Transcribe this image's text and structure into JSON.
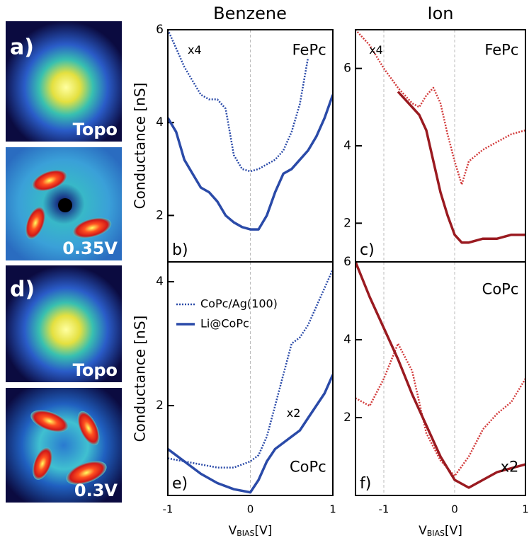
{
  "column_titles": [
    "Benzene",
    "Ion"
  ],
  "images": [
    {
      "label": "a)",
      "caption": "Topo"
    },
    {
      "caption": "0.35V"
    },
    {
      "label": "d)",
      "caption": "Topo"
    },
    {
      "caption": "0.3V"
    }
  ],
  "chart_data": [
    {
      "type": "line",
      "panel_label": "b)",
      "ylabel": "Conductance [nS]",
      "annotations": [
        "x4",
        "FePc"
      ],
      "xlim": [
        -1,
        1
      ],
      "xticks": [
        -1,
        0,
        1
      ],
      "show_xticklabels": false,
      "ylim": [
        1,
        6
      ],
      "yticks": [
        2,
        4,
        6
      ],
      "grid": true,
      "series": [
        {
          "color": "#2a4aa8",
          "style": "dotted",
          "x": [
            -1,
            -0.9,
            -0.8,
            -0.7,
            -0.6,
            -0.5,
            -0.4,
            -0.3,
            -0.2,
            -0.1,
            0,
            0.1,
            0.2,
            0.3,
            0.4,
            0.5,
            0.6,
            0.7
          ],
          "values": [
            6.0,
            5.6,
            5.2,
            4.9,
            4.6,
            4.5,
            4.5,
            4.3,
            3.3,
            3.0,
            2.95,
            3.0,
            3.1,
            3.2,
            3.4,
            3.8,
            4.4,
            5.4
          ]
        },
        {
          "color": "#2a4aa8",
          "style": "solid",
          "x": [
            -1,
            -0.9,
            -0.8,
            -0.7,
            -0.6,
            -0.5,
            -0.4,
            -0.3,
            -0.2,
            -0.1,
            0,
            0.1,
            0.2,
            0.3,
            0.4,
            0.5,
            0.6,
            0.7,
            0.8,
            0.9,
            1
          ],
          "values": [
            4.1,
            3.8,
            3.2,
            2.9,
            2.6,
            2.5,
            2.3,
            2.0,
            1.85,
            1.75,
            1.7,
            1.7,
            2.0,
            2.5,
            2.9,
            3.0,
            3.2,
            3.4,
            3.7,
            4.1,
            4.6
          ]
        }
      ]
    },
    {
      "type": "line",
      "panel_label": "c)",
      "annotations": [
        "x4",
        "FePc"
      ],
      "xlim": [
        -1.4,
        1
      ],
      "xticks": [
        -1,
        0,
        1
      ],
      "show_xticklabels": false,
      "ylim": [
        1,
        7
      ],
      "yticks": [
        2,
        4,
        6
      ],
      "grid": true,
      "series": [
        {
          "color": "#d23a3a",
          "style": "dotted",
          "x": [
            -1.4,
            -1.2,
            -1.0,
            -0.8,
            -0.6,
            -0.5,
            -0.4,
            -0.3,
            -0.2,
            -0.1,
            0,
            0.1,
            0.2,
            0.4,
            0.6,
            0.8,
            1.0
          ],
          "values": [
            7.0,
            6.6,
            6.0,
            5.5,
            5.1,
            5.0,
            5.3,
            5.5,
            5.1,
            4.3,
            3.6,
            3.0,
            3.6,
            3.9,
            4.1,
            4.3,
            4.4
          ]
        },
        {
          "color": "#9a1a20",
          "style": "solid",
          "x": [
            -0.8,
            -0.6,
            -0.5,
            -0.4,
            -0.3,
            -0.2,
            -0.1,
            0,
            0.1,
            0.2,
            0.4,
            0.6,
            0.8,
            1.0
          ],
          "values": [
            5.4,
            5.0,
            4.8,
            4.4,
            3.6,
            2.8,
            2.2,
            1.7,
            1.5,
            1.5,
            1.6,
            1.6,
            1.7,
            1.7
          ]
        }
      ]
    },
    {
      "type": "line",
      "panel_label": "e)",
      "ylabel": "Conductance [nS]",
      "xlabel": [
        "V",
        "BIAS",
        "[V]"
      ],
      "annotations": [
        "x2",
        "CoPc"
      ],
      "xlim": [
        -1,
        1
      ],
      "xticks": [
        -1,
        0,
        1
      ],
      "show_xticklabels": true,
      "ylim": [
        0.55,
        4.32
      ],
      "yticks": [
        2,
        4
      ],
      "grid": true,
      "legend": "upper left",
      "series": [
        {
          "name": "CoPc/Ag(100)",
          "color": "#2a4aa8",
          "style": "dotted",
          "x": [
            -1,
            -0.8,
            -0.6,
            -0.4,
            -0.2,
            0,
            0.1,
            0.2,
            0.3,
            0.4,
            0.5,
            0.6,
            0.7,
            0.8,
            0.9,
            1
          ],
          "values": [
            1.15,
            1.1,
            1.05,
            1.0,
            1.0,
            1.1,
            1.2,
            1.5,
            2.0,
            2.5,
            3.0,
            3.1,
            3.3,
            3.6,
            3.9,
            4.2
          ]
        },
        {
          "name": "Li@CoPc",
          "color": "#2a4aa8",
          "style": "solid",
          "x": [
            -1,
            -0.8,
            -0.6,
            -0.4,
            -0.2,
            0,
            0.1,
            0.2,
            0.3,
            0.4,
            0.5,
            0.6,
            0.7,
            0.8,
            0.9,
            1
          ],
          "values": [
            1.3,
            1.1,
            0.9,
            0.75,
            0.65,
            0.6,
            0.8,
            1.1,
            1.3,
            1.4,
            1.5,
            1.6,
            1.8,
            2.0,
            2.2,
            2.5
          ]
        }
      ]
    },
    {
      "type": "line",
      "panel_label": "f)",
      "xlabel": [
        "V",
        "BIAS",
        "[V]"
      ],
      "annotations": [
        "CoPc",
        "x2"
      ],
      "xlim": [
        -1.4,
        1
      ],
      "xticks": [
        -1,
        0,
        1
      ],
      "show_xticklabels": true,
      "ylim": [
        0,
        6
      ],
      "yticks": [
        2,
        4,
        6
      ],
      "grid": true,
      "series": [
        {
          "color": "#d23a3a",
          "style": "dotted",
          "x": [
            -1.4,
            -1.2,
            -1.0,
            -0.8,
            -0.6,
            -0.4,
            -0.2,
            0,
            0.2,
            0.4,
            0.6,
            0.8,
            1.0
          ],
          "values": [
            2.5,
            2.3,
            3.0,
            3.9,
            3.2,
            1.6,
            0.9,
            0.5,
            1.0,
            1.7,
            2.1,
            2.4,
            3.0
          ]
        },
        {
          "color": "#9a1a20",
          "style": "solid",
          "x": [
            -1.4,
            -1.2,
            -1.0,
            -0.8,
            -0.6,
            -0.4,
            -0.2,
            0,
            0.2,
            0.4,
            0.6,
            0.8,
            1.0
          ],
          "values": [
            6.0,
            5.1,
            4.3,
            3.5,
            2.6,
            1.8,
            1.0,
            0.4,
            0.2,
            0.4,
            0.6,
            0.7,
            0.8
          ]
        }
      ]
    }
  ]
}
